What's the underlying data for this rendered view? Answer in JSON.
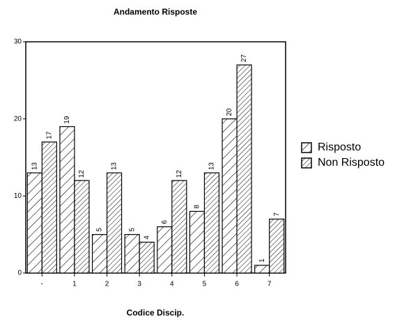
{
  "chart_data": {
    "type": "bar",
    "title": "Andamento Risposte",
    "xlabel": "Codice Discip.",
    "categories": [
      "-",
      "1",
      "2",
      "3",
      "4",
      "5",
      "6",
      "7"
    ],
    "series": [
      {
        "name": "Risposto",
        "color": "#000000",
        "values": [
          13,
          19,
          5,
          5,
          6,
          8,
          20,
          1
        ]
      },
      {
        "name": "Non Risposto",
        "color": "#000000",
        "values": [
          17,
          12,
          13,
          4,
          12,
          13,
          27,
          7
        ]
      }
    ],
    "ylim": [
      0,
      30
    ],
    "yticks": [
      0,
      10,
      20,
      30
    ],
    "grid": false,
    "legend": "right",
    "data_labels": true
  }
}
